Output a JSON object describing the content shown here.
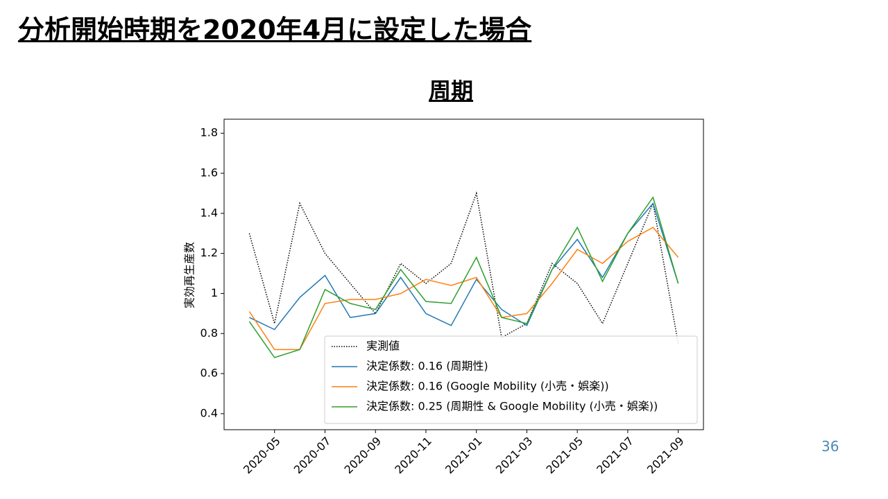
{
  "slide": {
    "title": "分析開始時期を2020年4月に設定した場合",
    "page_number": 36
  },
  "chart_data": {
    "type": "line",
    "title": "周期",
    "ylabel": "実効再生産数",
    "x": [
      "2020-04",
      "2020-05",
      "2020-06",
      "2020-07",
      "2020-08",
      "2020-09",
      "2020-10",
      "2020-11",
      "2020-12",
      "2021-01",
      "2021-02",
      "2021-03",
      "2021-04",
      "2021-05",
      "2021-06",
      "2021-07",
      "2021-08",
      "2021-09"
    ],
    "xlim": [
      "2020-03",
      "2021-10"
    ],
    "xticks": [
      "2020-05",
      "2020-07",
      "2020-09",
      "2020-11",
      "2021-01",
      "2021-03",
      "2021-05",
      "2021-07",
      "2021-09"
    ],
    "ylim": [
      0.32,
      1.87
    ],
    "yticks": [
      0.4,
      0.6,
      0.8,
      1.0,
      1.2,
      1.4,
      1.6,
      1.8
    ],
    "legend": "lower right",
    "series": [
      {
        "name": "実測値",
        "color": "#000000",
        "style": "dotted",
        "values": [
          1.3,
          0.85,
          1.45,
          1.2,
          1.05,
          0.9,
          1.15,
          1.05,
          1.15,
          1.5,
          0.78,
          0.85,
          1.15,
          1.05,
          0.85,
          1.15,
          1.45,
          0.75
        ]
      },
      {
        "name": "決定係数: 0.16 (周期性)",
        "color": "#1f77b4",
        "style": "solid",
        "values": [
          0.88,
          0.82,
          0.98,
          1.09,
          0.88,
          0.9,
          1.08,
          0.9,
          0.84,
          1.07,
          0.92,
          0.84,
          1.12,
          1.27,
          1.08,
          1.3,
          1.45,
          1.05
        ]
      },
      {
        "name": "決定係数: 0.16 (Google Mobility (小売・娯楽))",
        "color": "#ff7f0e",
        "style": "solid",
        "values": [
          0.91,
          0.72,
          0.72,
          0.95,
          0.97,
          0.97,
          1.0,
          1.07,
          1.04,
          1.08,
          0.88,
          0.9,
          1.05,
          1.22,
          1.15,
          1.26,
          1.33,
          1.18
        ]
      },
      {
        "name": "決定係数: 0.25 (周期性 & Google Mobility (小売・娯楽))",
        "color": "#2ca02c",
        "style": "solid",
        "values": [
          0.86,
          0.68,
          0.72,
          1.02,
          0.95,
          0.92,
          1.12,
          0.96,
          0.95,
          1.18,
          0.88,
          0.85,
          1.12,
          1.33,
          1.06,
          1.3,
          1.48,
          1.05
        ]
      }
    ]
  }
}
